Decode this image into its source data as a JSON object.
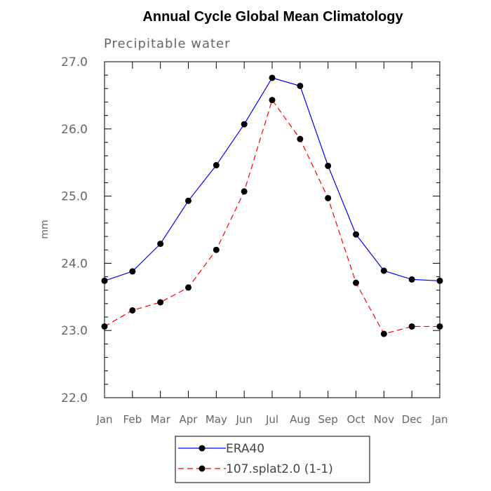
{
  "chart_data": {
    "type": "line",
    "title": "Annual Cycle Global Mean Climatology",
    "subtitle": "Precipitable water",
    "xlabel": "",
    "ylabel": "mm",
    "ylim": [
      22.0,
      27.0
    ],
    "yticks": [
      "22.0",
      "23.0",
      "24.0",
      "25.0",
      "26.0",
      "27.0"
    ],
    "categories": [
      "Jan",
      "Feb",
      "Mar",
      "Apr",
      "May",
      "Jun",
      "Jul",
      "Aug",
      "Sep",
      "Oct",
      "Nov",
      "Dec",
      "Jan"
    ],
    "series": [
      {
        "name": "ERA40",
        "color": "#0000ff",
        "style": "solid",
        "values": [
          23.74,
          23.88,
          24.29,
          24.93,
          25.46,
          26.07,
          26.76,
          26.64,
          25.45,
          24.43,
          23.89,
          23.76,
          23.74
        ]
      },
      {
        "name": "107.splat2.0 (1-1)",
        "color": "#ff0000",
        "style": "dashed",
        "values": [
          23.06,
          23.3,
          23.42,
          23.64,
          24.2,
          25.07,
          26.43,
          25.85,
          24.97,
          23.71,
          22.95,
          23.06,
          23.06
        ]
      }
    ],
    "grid": false,
    "legend_placement": "bottom-center"
  }
}
